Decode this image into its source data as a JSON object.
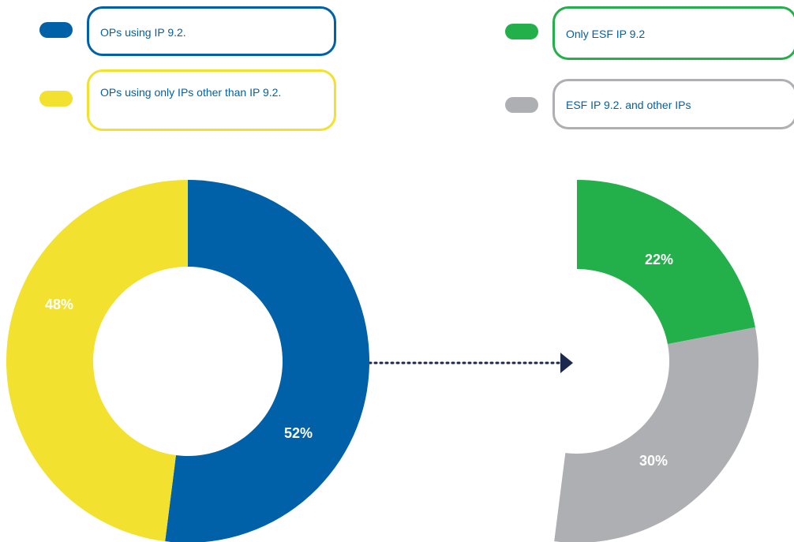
{
  "chart_data": [
    {
      "type": "donut",
      "categories": [
        "OPs using IP 9.2.",
        "OPs using only IPs other than IP 9.2."
      ],
      "values": [
        52,
        48
      ],
      "value_labels": [
        "52%",
        "48%"
      ],
      "colors": [
        "#0061a8",
        "#f2e12e"
      ]
    },
    {
      "type": "donut",
      "categories": [
        "Only ESF IP 9.2",
        "ESF IP 9.2. and other IPs"
      ],
      "values": [
        22,
        30
      ],
      "value_labels": [
        "22%",
        "30%"
      ],
      "colors": [
        "#23b04a",
        "#aeafb3"
      ]
    }
  ]
}
